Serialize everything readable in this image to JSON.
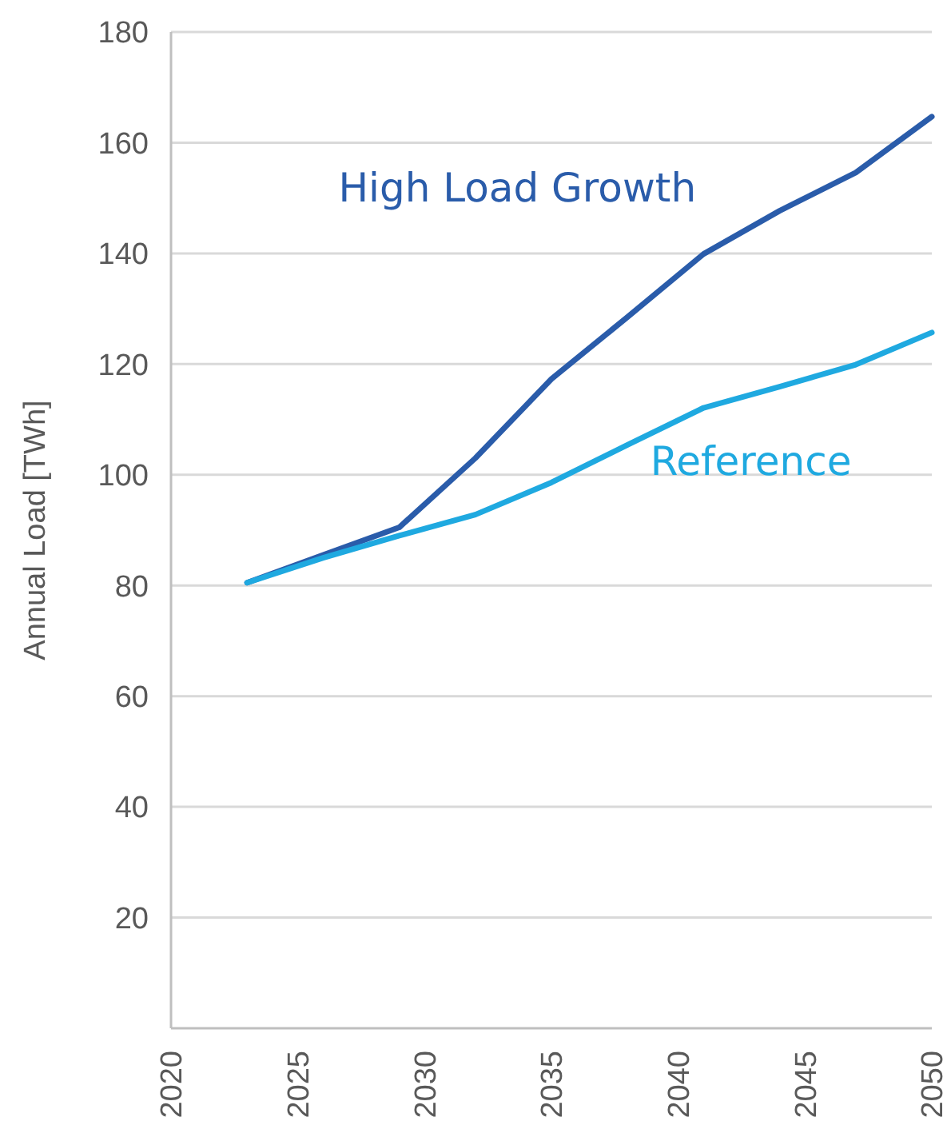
{
  "chart_data": {
    "type": "line",
    "ylabel": "Annual Load [TWh]",
    "x": [
      2023,
      2026,
      2029,
      2032,
      2035,
      2038,
      2041,
      2044,
      2047,
      2050
    ],
    "series": [
      {
        "name": "High Load Growth",
        "color": "#2a5caa",
        "values": [
          80.5,
          85.5,
          90.5,
          103,
          117.3,
          128.5,
          139.9,
          147.7,
          154.6,
          164.7
        ]
      },
      {
        "name": "Reference",
        "color": "#1fa9e0",
        "values": [
          80.5,
          85,
          89,
          92.8,
          98.6,
          105.4,
          112.1,
          115.9,
          119.9,
          125.7
        ]
      }
    ],
    "xlim": [
      2020,
      2050
    ],
    "xticks": [
      2020,
      2025,
      2030,
      2035,
      2040,
      2045,
      2050
    ],
    "ylim": [
      0,
      180
    ],
    "yticks": [
      {
        "value": 0,
        "label": null
      },
      20,
      40,
      60,
      80,
      100,
      120,
      140,
      160,
      180
    ],
    "grid": "y",
    "legend": false,
    "marker": "none",
    "line_style": "solid"
  }
}
